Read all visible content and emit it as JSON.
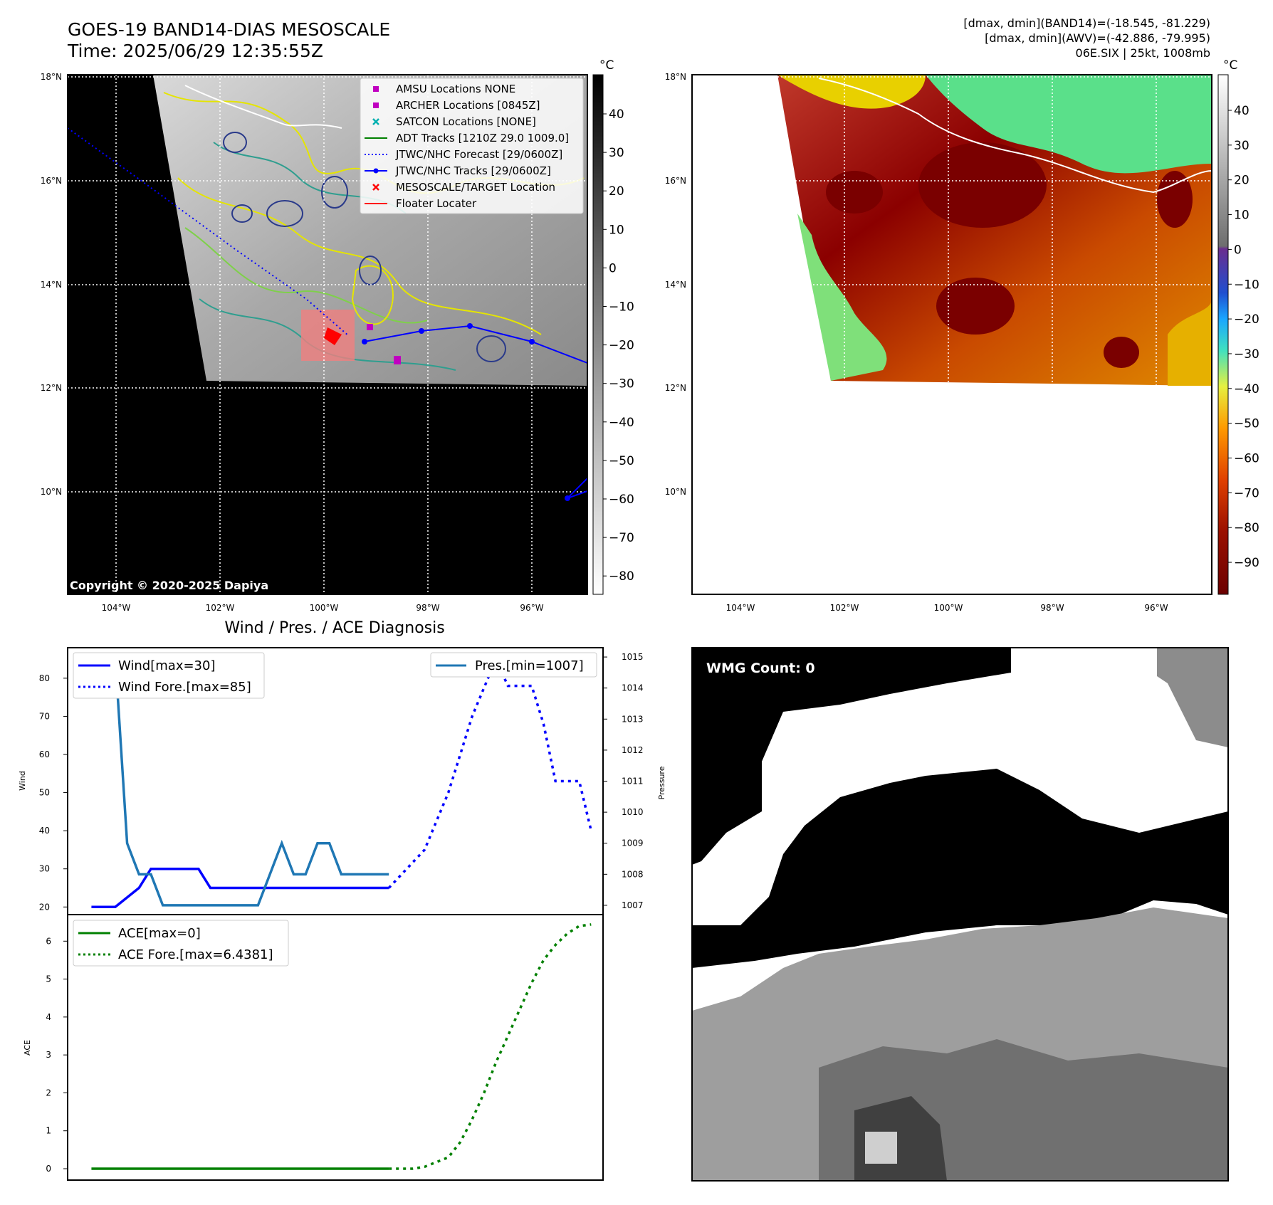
{
  "header": {
    "title_line1": "GOES-19 BAND14-DIAS MESOSCALE",
    "title_line2": "Time: 2025/06/29 12:35:55Z",
    "info_line1": "[dmax, dmin](BAND14)=(-18.545, -81.229)",
    "info_line2": "[dmax, dmin](AWV)=(-42.886, -79.995)",
    "info_line3": "06E.SIX | 25kt, 1008mb"
  },
  "map_left": {
    "lat_ticks": [
      "18°N",
      "16°N",
      "14°N",
      "12°N",
      "10°N"
    ],
    "lon_ticks": [
      "104°W",
      "102°W",
      "100°W",
      "98°W",
      "96°W"
    ],
    "copyright": "Copyright © 2020-2025 Dapiya",
    "colorbar_unit": "°C",
    "colorbar_ticks": [
      "40",
      "30",
      "20",
      "10",
      "0",
      "−10",
      "−20",
      "−30",
      "−40",
      "−50",
      "−60",
      "−70",
      "−80"
    ],
    "legend": [
      {
        "label": "AMSU Locations NONE",
        "color": "#c000c0",
        "marker": "square"
      },
      {
        "label": "ARCHER Locations [0845Z]",
        "color": "#c000c0",
        "marker": "square"
      },
      {
        "label": "SATCON Locations [NONE]",
        "color": "#00b0b0",
        "marker": "x"
      },
      {
        "label": "ADT Tracks [1210Z 29.0 1009.0]",
        "color": "#008000",
        "marker": "line"
      },
      {
        "label": "JTWC/NHC Forecast [29/0600Z]",
        "color": "#0000ff",
        "marker": "dotted"
      },
      {
        "label": "JTWC/NHC Tracks [29/0600Z]",
        "color": "#0000ff",
        "marker": "line-dot"
      },
      {
        "label": "MESOSCALE/TARGET Location",
        "color": "#ff0000",
        "marker": "x"
      },
      {
        "label": "Floater Locater",
        "color": "#ff0000",
        "marker": "line"
      }
    ]
  },
  "map_right": {
    "lat_ticks": [
      "18°N",
      "16°N",
      "14°N",
      "12°N",
      "10°N"
    ],
    "lon_ticks": [
      "104°W",
      "102°W",
      "100°W",
      "98°W",
      "96°W"
    ],
    "colorbar_unit": "°C",
    "colorbar_ticks": [
      "40",
      "30",
      "20",
      "10",
      "0",
      "−10",
      "−20",
      "−30",
      "−40",
      "−50",
      "−60",
      "−70",
      "−80",
      "−90"
    ]
  },
  "wmg": {
    "label": "WMG Count: 0"
  },
  "chart_data": [
    {
      "type": "line",
      "title": "Wind / Pres. / ACE Diagnosis",
      "ylabel": "Wind",
      "y2label": "Pressure",
      "ylim": [
        18,
        88
      ],
      "y2lim": [
        1006.7,
        1015.3
      ],
      "xlim": [
        -2,
        43
      ],
      "yticks": [
        20,
        30,
        40,
        50,
        60,
        70,
        80
      ],
      "y2ticks": [
        1007,
        1008,
        1009,
        1010,
        1011,
        1012,
        1013,
        1014,
        1015
      ],
      "series": [
        {
          "name": "Wind[max=30]",
          "axis": "left",
          "color": "#0000ff",
          "style": "solid",
          "x": [
            0,
            2,
            4,
            5,
            6,
            7,
            8,
            9,
            10,
            11,
            12,
            13,
            14,
            15,
            16,
            17,
            18,
            19,
            20,
            21,
            22,
            23,
            24,
            25
          ],
          "y": [
            20,
            20,
            25,
            30,
            30,
            30,
            30,
            30,
            25,
            25,
            25,
            25,
            25,
            25,
            25,
            25,
            25,
            25,
            25,
            25,
            25,
            25,
            25,
            25
          ]
        },
        {
          "name": "Wind Fore.[max=85]",
          "axis": "left",
          "color": "#0000ff",
          "style": "dotted",
          "x": [
            25,
            28,
            30,
            32,
            34,
            35,
            36,
            37,
            38,
            39,
            40,
            41,
            42
          ],
          "y": [
            25,
            35,
            50,
            70,
            85,
            78,
            78,
            78,
            68,
            53,
            53,
            53,
            40
          ]
        },
        {
          "name": "Pres.[min=1007]",
          "axis": "right",
          "color": "#1f77b4",
          "style": "solid",
          "x": [
            0,
            1,
            2,
            3,
            4,
            5,
            6,
            7,
            8,
            9,
            10,
            11,
            12,
            13,
            14,
            15,
            16,
            17,
            18,
            19,
            20,
            21,
            22,
            23,
            24,
            25
          ],
          "y": [
            1015,
            1015,
            1015,
            1009,
            1008,
            1008,
            1007,
            1007,
            1007,
            1007,
            1007,
            1007,
            1007,
            1007,
            1007,
            1008,
            1009,
            1008,
            1008,
            1009,
            1009,
            1008,
            1008,
            1008,
            1008,
            1008
          ]
        }
      ]
    },
    {
      "type": "line",
      "ylabel": "ACE",
      "ylim": [
        -0.3,
        6.7
      ],
      "xlim": [
        -2,
        43
      ],
      "yticks": [
        0,
        1,
        2,
        3,
        4,
        5,
        6
      ],
      "series": [
        {
          "name": "ACE[max=0]",
          "color": "#008000",
          "style": "solid",
          "x": [
            0,
            25
          ],
          "y": [
            0,
            0
          ]
        },
        {
          "name": "ACE Fore.[max=6.4381]",
          "color": "#008000",
          "style": "dotted",
          "x": [
            25,
            27,
            28,
            30,
            31,
            32,
            33,
            34,
            35,
            36,
            37,
            38,
            39,
            40,
            41,
            42
          ],
          "y": [
            0,
            0,
            0.05,
            0.3,
            0.7,
            1.3,
            2.0,
            2.8,
            3.5,
            4.2,
            4.9,
            5.5,
            5.9,
            6.2,
            6.4,
            6.44
          ]
        }
      ]
    }
  ]
}
